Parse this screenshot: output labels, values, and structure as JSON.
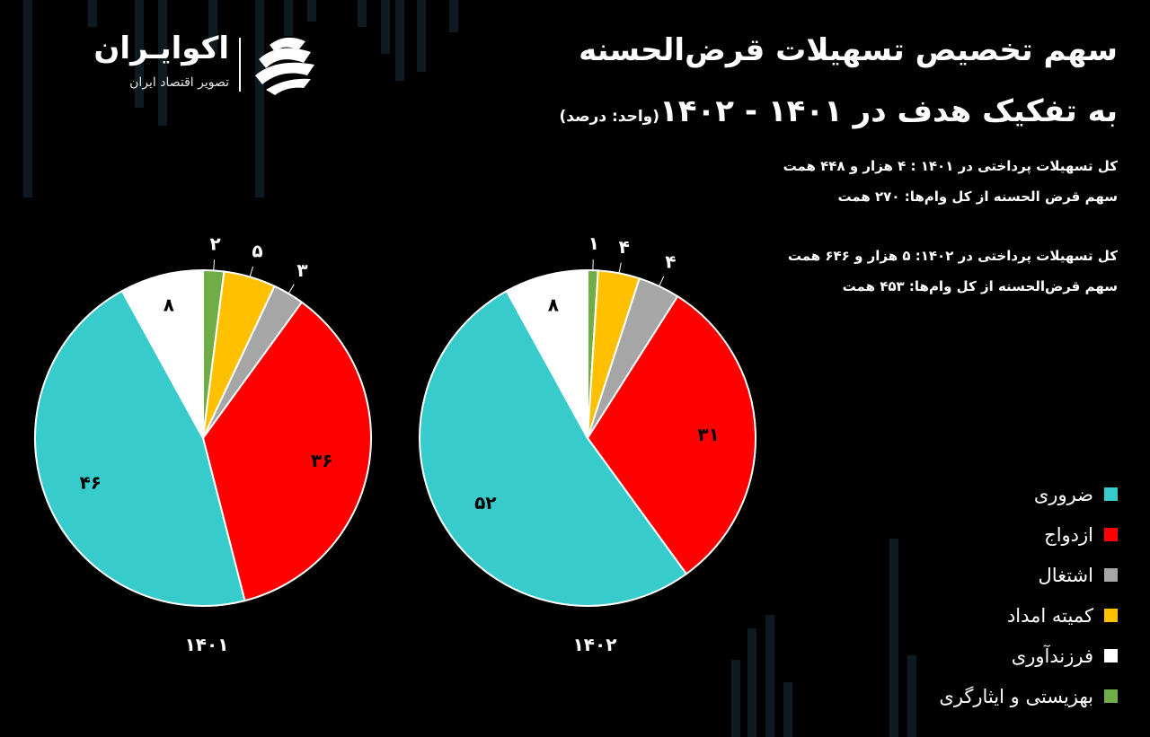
{
  "logo": {
    "name": "اکوایـران",
    "tagline": "تصویر اقتصاد ایران",
    "icon": "brand-stripes-icon"
  },
  "title": {
    "line1": "سهم تخصیص تسهیلات قرض‌الحسنه",
    "line2": "به تفکیک هدف در ۱۴۰۱ - ۱۴۰۲",
    "unit": "(واحد: درصد)"
  },
  "notes": {
    "note_1401_total": "کل تسهیلات پرداختی در ۱۴۰۱ : ۴ هزار و ۴۴۸ همت",
    "note_1401_share": "سهم قرض الحسنه از کل وام‌ها: ۲۷۰ همت",
    "note_1402_total": "کل تسهیلات پرداختی در ۱۴۰۲: ۵ هزار و ۶۴۶ همت",
    "note_1402_share": "سهم قرض‌الحسنه از کل وام‌ها: ۴۵۳ همت"
  },
  "colors": {
    "background": "#000000",
    "zarouri": "#37CBCC",
    "ezdevaj": "#FF0000",
    "eshteghal": "#A6A6A6",
    "komite": "#FFC000",
    "farzand": "#FFFFFF",
    "behzisti": "#70AD47"
  },
  "legend": [
    {
      "label": "ضروری",
      "color": "#37CBCC"
    },
    {
      "label": "ازدواج",
      "color": "#FF0000"
    },
    {
      "label": "اشتغال",
      "color": "#A6A6A6"
    },
    {
      "label": "کمیته امداد",
      "color": "#FFC000"
    },
    {
      "label": "فرزندآوری",
      "color": "#FFFFFF"
    },
    {
      "label": "بهزیستی و ایثارگری",
      "color": "#70AD47"
    }
  ],
  "chart_data": [
    {
      "type": "pie",
      "title": "۱۴۰۱",
      "categories": [
        "بهزیستی و ایثارگری",
        "کمیته امداد",
        "اشتغال",
        "ازدواج",
        "ضروری",
        "فرزندآوری"
      ],
      "values": [
        2,
        5,
        3,
        36,
        46,
        8
      ],
      "value_labels": [
        "۲",
        "۵",
        "۳",
        "۳۶",
        "۴۶",
        "۸"
      ],
      "colors": [
        "#70AD47",
        "#FFC000",
        "#A6A6A6",
        "#FF0000",
        "#37CBCC",
        "#FFFFFF"
      ]
    },
    {
      "type": "pie",
      "title": "۱۴۰۲",
      "categories": [
        "بهزیستی و ایثارگری",
        "کمیته امداد",
        "اشتغال",
        "ازدواج",
        "ضروری",
        "فرزندآوری"
      ],
      "values": [
        1,
        4,
        4,
        31,
        52,
        8
      ],
      "value_labels": [
        "۱",
        "۴",
        "۴",
        "۳۱",
        "۵۲",
        "۸"
      ],
      "colors": [
        "#70AD47",
        "#FFC000",
        "#A6A6A6",
        "#FF0000",
        "#37CBCC",
        "#FFFFFF"
      ]
    }
  ]
}
